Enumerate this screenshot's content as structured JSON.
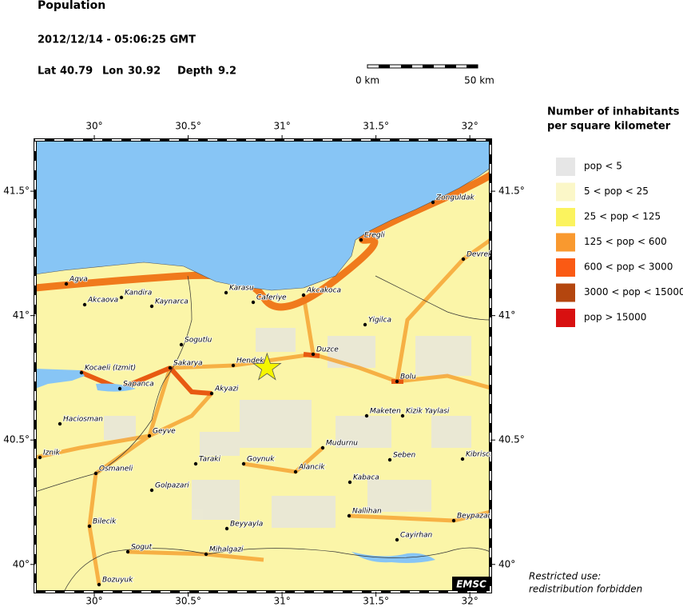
{
  "header": {
    "title": "Population",
    "datetime": "2012/12/14 - 05:06:25 GMT",
    "lat_label": "Lat",
    "lat": 40.79,
    "lon_label": "Lon",
    "lon": 30.92,
    "depth_label": "Depth",
    "depth": 9.2
  },
  "scale_bar": {
    "start": "0 km",
    "end": "50 km"
  },
  "map": {
    "lon_range": [
      29.685,
      32.11
    ],
    "lat_range": [
      39.89,
      41.706
    ],
    "lon_ticks": [
      {
        "value": 30,
        "label": "30°"
      },
      {
        "value": 30.5,
        "label": "30.5°"
      },
      {
        "value": 31,
        "label": "31°"
      },
      {
        "value": 31.5,
        "label": "31.5°"
      },
      {
        "value": 32,
        "label": "32°"
      }
    ],
    "lat_ticks": [
      {
        "value": 40,
        "label": "40°"
      },
      {
        "value": 40.5,
        "label": "40.5°"
      },
      {
        "value": 41,
        "label": "41°"
      },
      {
        "value": 41.5,
        "label": "41.5°"
      }
    ],
    "cities": [
      "Agva",
      "Akcaova",
      "Kandira",
      "Kaynarca",
      "Karasu",
      "Caferiye",
      "Akcakoca",
      "Eregli",
      "Zonguldak",
      "Devrek",
      "Yigilca",
      "Duzce",
      "Sogutlu",
      "Hendek",
      "Sakarya",
      "Kocaeli (Izmit)",
      "Sapanca",
      "Akyazi",
      "Bolu",
      "Haciosman",
      "Geyve",
      "Maketen",
      "Kizik Yaylasi",
      "Iznik",
      "Osmaneli",
      "Taraki",
      "Goynuk",
      "Mudurnu",
      "Alancik",
      "Seben",
      "Kibriscik",
      "Golpazari",
      "Kabaca",
      "Nallihan",
      "Beypazari",
      "Bilecik",
      "Beyyayla",
      "Cayirhan",
      "Sogut",
      "Mihalgazi",
      "Bozuyuk"
    ],
    "logo": "EMSC"
  },
  "legend": {
    "title_lines": [
      "Number of inhabitants",
      "per square kilometer"
    ],
    "items": [
      {
        "label": "pop < 5",
        "color": "#e6e6e6"
      },
      {
        "label": "5 < pop < 25",
        "color": "#fbf7c8"
      },
      {
        "label": "25 < pop < 125",
        "color": "#fbf35e"
      },
      {
        "label": "125 < pop < 600",
        "color": "#f9992f"
      },
      {
        "label": "600 < pop < 3000",
        "color": "#fa5a14"
      },
      {
        "label": "3000 < pop < 15000",
        "color": "#b4460f"
      },
      {
        "label": "pop > 15000",
        "color": "#d81010"
      }
    ]
  },
  "note_lines": [
    "Restricted use:",
    "redistribution forbidden"
  ]
}
